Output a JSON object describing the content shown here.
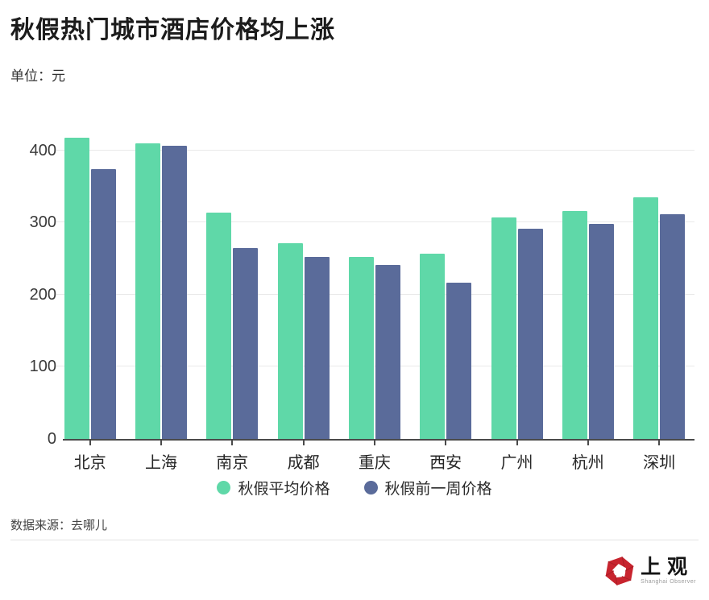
{
  "header": {
    "title": "秋假热门城市酒店价格均上涨",
    "unit_label": "单位：元"
  },
  "chart_data": {
    "type": "bar",
    "title": "秋假热门城市酒店价格均上涨",
    "xlabel": "",
    "ylabel": "元",
    "ylim": [
      0,
      430
    ],
    "yticks": [
      0,
      100,
      200,
      300,
      400
    ],
    "grid": true,
    "legend_position": "bottom",
    "categories": [
      "北京",
      "上海",
      "南京",
      "成都",
      "重庆",
      "西安",
      "广州",
      "杭州",
      "深圳"
    ],
    "series": [
      {
        "name": "秋假平均价格",
        "color": "#5FD8A8",
        "values": [
          418,
          410,
          314,
          271,
          252,
          257,
          307,
          316,
          335
        ]
      },
      {
        "name": "秋假前一周价格",
        "color": "#5A6B9A",
        "values": [
          374,
          407,
          265,
          252,
          241,
          217,
          291,
          298,
          312
        ]
      }
    ]
  },
  "footer": {
    "source": "数据来源：去哪儿",
    "logo_cn": "上观",
    "logo_en": "Shanghai Observer"
  },
  "colors": {
    "grid": "#e9e9e9",
    "axis": "#4a4a4a",
    "logo_red": "#c8242e"
  }
}
